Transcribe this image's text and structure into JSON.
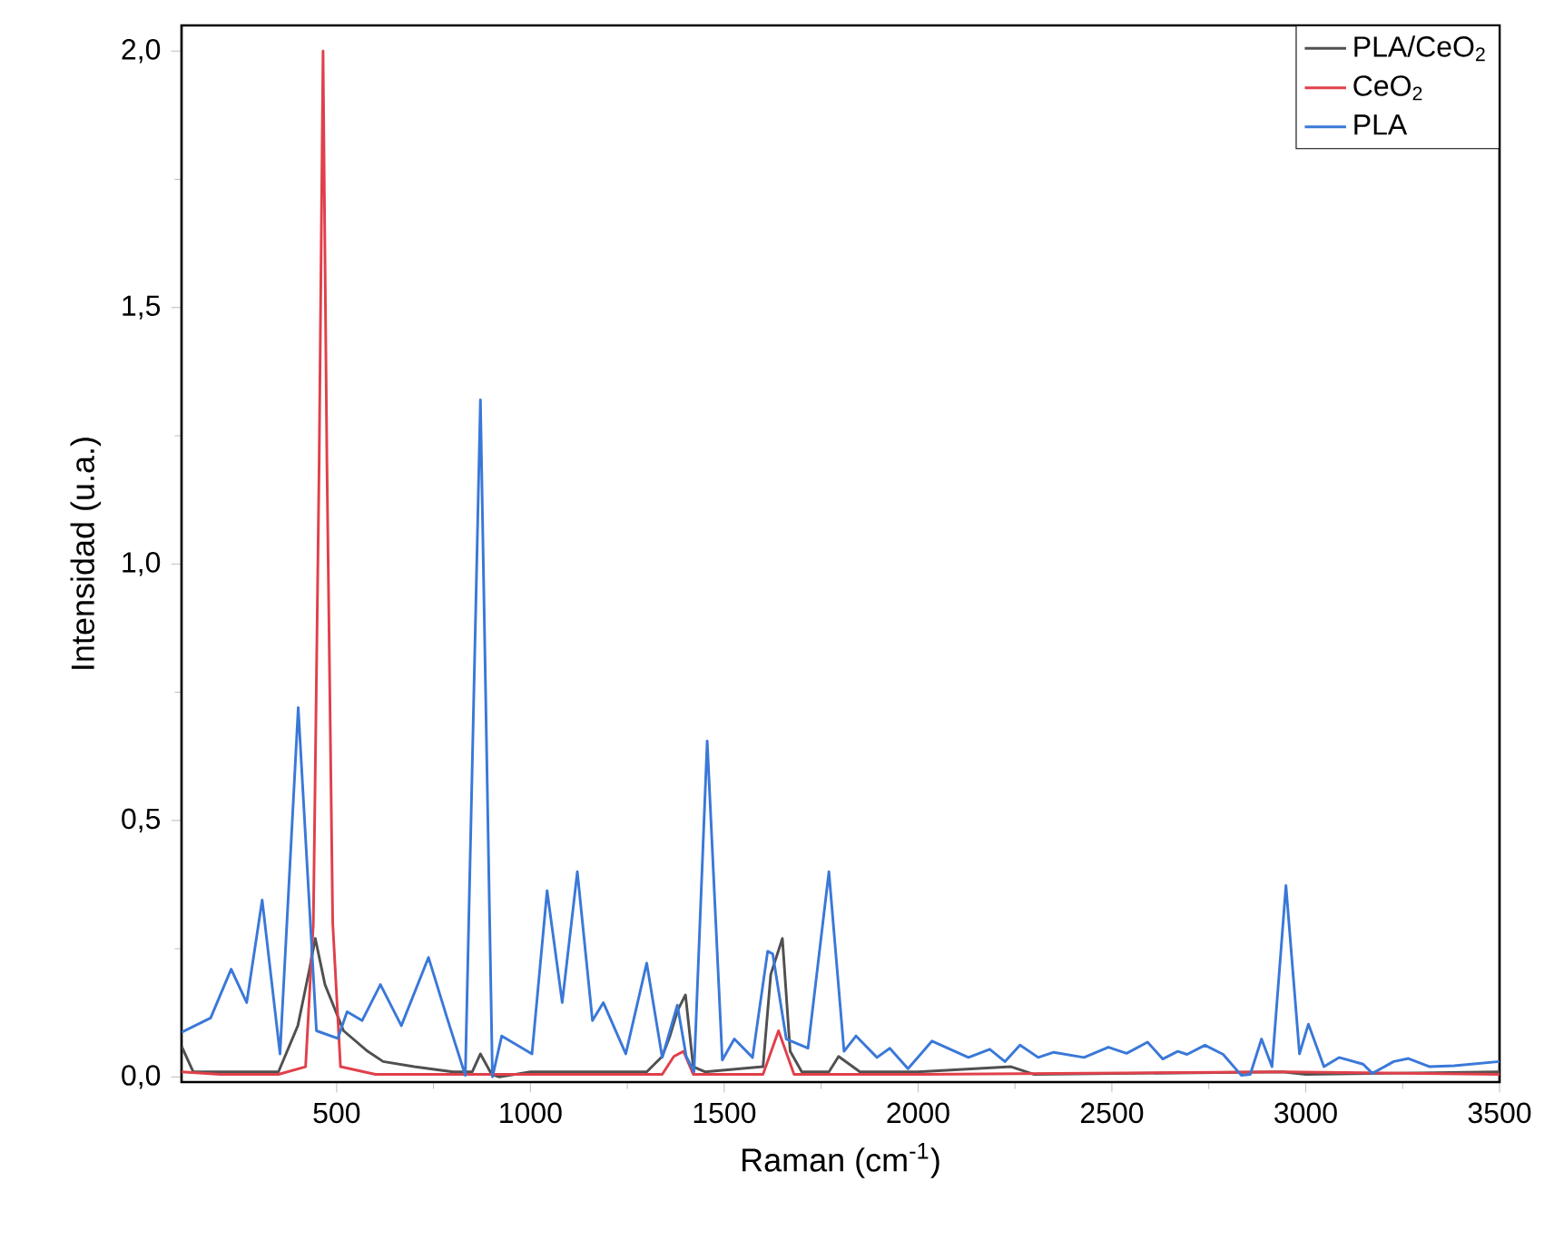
{
  "chart_data": {
    "type": "line",
    "xlabel": "Raman (cm$^{-1}$)",
    "ylabel": "Intensidad (u.a.)",
    "xlim": [
      100,
      3500
    ],
    "ylim": [
      -0.01,
      2.05
    ],
    "xticks": [
      500,
      1000,
      1500,
      2000,
      2500,
      3000,
      3500
    ],
    "yticks": [
      {
        "value": 0,
        "label": "0,0"
      },
      {
        "value": 0.5,
        "label": "0,5"
      },
      {
        "value": 1,
        "label": "1,0"
      },
      {
        "value": 1.5,
        "label": "1,5"
      },
      {
        "value": 2,
        "label": "2,0"
      }
    ],
    "legend": "top right",
    "line_style": "solid",
    "series": [
      {
        "name": "PLA/CeO$_{2}$",
        "color": "#505050",
        "x": [
          100,
          130,
          200,
          350,
          400,
          430,
          445,
          470,
          518,
          580,
          620,
          700,
          800,
          850,
          871,
          900,
          920,
          1000,
          1200,
          1300,
          1340,
          1360,
          1380,
          1400,
          1420,
          1450,
          1600,
          1620,
          1650,
          1670,
          1700,
          1770,
          1795,
          1850,
          2000,
          2240,
          2300,
          2940,
          3000,
          3500
        ],
        "values": [
          0.06,
          0.01,
          null,
          0.01,
          0.1,
          0.21,
          0.27,
          0.18,
          0.09,
          0.05,
          0.03,
          0.02,
          0.01,
          0.01,
          0.045,
          0.005,
          0.0,
          0.01,
          0.01,
          0.01,
          0.04,
          0.08,
          0.13,
          0.16,
          0.02,
          0.01,
          0.02,
          0.2,
          0.27,
          0.05,
          0.01,
          0.01,
          0.04,
          0.01,
          0.01,
          0.02,
          0.005,
          0.01,
          0.005,
          0.01
        ]
      },
      {
        "name": "CeO$_{2}$",
        "color": "#e0404a",
        "x": [
          100,
          200,
          350,
          420,
          440,
          455,
          465,
          475,
          490,
          510,
          600,
          1000,
          1340,
          1370,
          1395,
          1420,
          1600,
          1640,
          1680,
          2000,
          2940,
          3500
        ],
        "values": [
          0.01,
          0.005,
          0.005,
          0.02,
          0.3,
          1.2,
          2.0,
          1.2,
          0.3,
          0.02,
          0.005,
          0.005,
          0.005,
          0.04,
          0.05,
          0.005,
          0.005,
          0.09,
          0.005,
          0.005,
          0.01,
          0.005
        ]
      },
      {
        "name": "PLA",
        "color": "#3a78d8",
        "x": [
          100,
          175,
          228,
          268,
          308,
          354,
          401,
          448,
          503,
          527,
          566,
          613,
          667,
          737,
          785,
          832,
          871,
          902,
          926,
          1004,
          1043,
          1082,
          1121,
          1160,
          1188,
          1246,
          1300,
          1340,
          1379,
          1402,
          1422,
          1456,
          1495,
          1526,
          1573,
          1612,
          1625,
          1660,
          1716,
          1770,
          1809,
          1840,
          1894,
          1927,
          1974,
          2036,
          2130,
          2185,
          2224,
          2263,
          2310,
          2350,
          2428,
          2491,
          2538,
          2592,
          2631,
          2670,
          2694,
          2740,
          2787,
          2834,
          2857,
          2886,
          2913,
          2949,
          2984,
          3007,
          3047,
          3086,
          3148,
          3172,
          3227,
          3265,
          3320,
          3383,
          3500
        ],
        "values": [
          0.087,
          0.115,
          0.21,
          0.145,
          0.345,
          0.045,
          0.72,
          0.09,
          0.075,
          0.127,
          0.11,
          0.18,
          0.1,
          0.233,
          0.115,
          0.003,
          1.32,
          0.0,
          0.08,
          0.045,
          0.363,
          0.145,
          0.4,
          0.11,
          0.145,
          0.045,
          0.222,
          0.038,
          0.14,
          0.04,
          0.01,
          0.655,
          0.033,
          0.074,
          0.038,
          0.245,
          0.24,
          0.074,
          0.056,
          0.4,
          0.05,
          0.08,
          0.038,
          0.056,
          0.016,
          0.07,
          0.038,
          0.054,
          0.03,
          0.062,
          0.038,
          0.048,
          0.038,
          0.058,
          0.046,
          0.068,
          0.035,
          0.05,
          0.044,
          0.062,
          0.044,
          0.003,
          0.005,
          0.074,
          0.02,
          0.373,
          0.045,
          0.103,
          0.02,
          0.038,
          0.025,
          0.007,
          0.03,
          0.036,
          0.02,
          0.022,
          0.03
        ]
      }
    ]
  }
}
